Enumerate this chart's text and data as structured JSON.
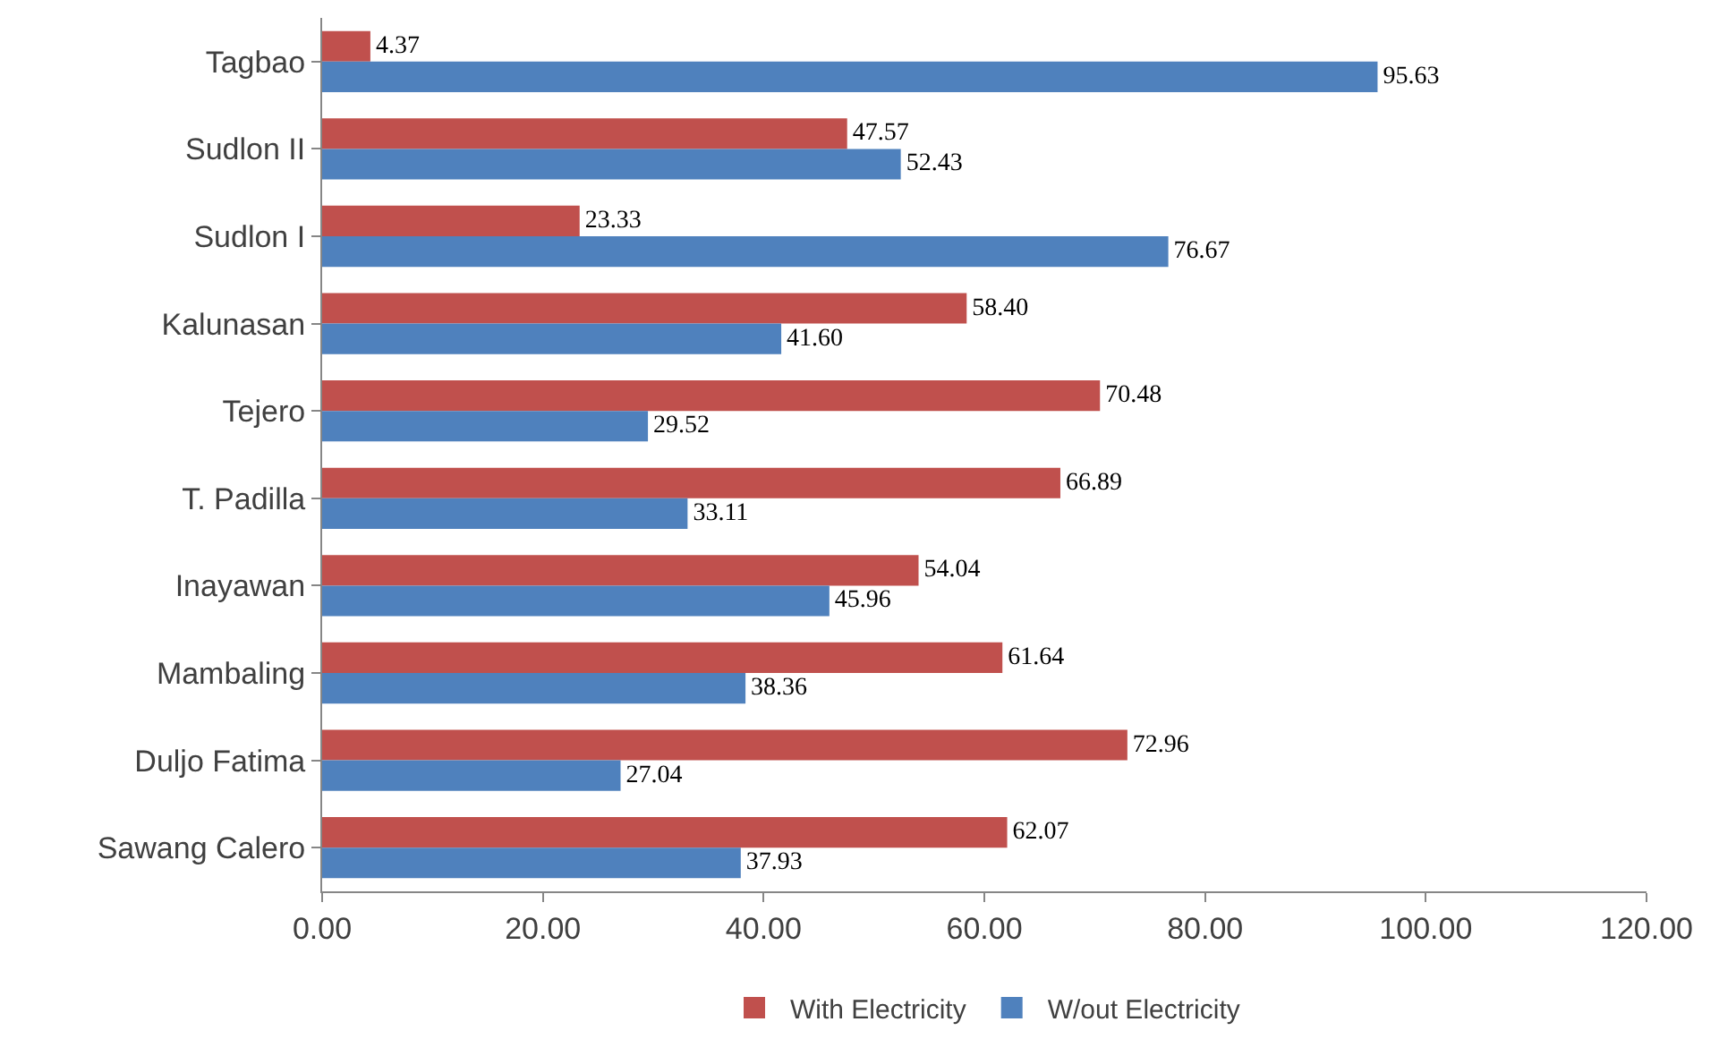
{
  "chart_data": {
    "type": "bar",
    "orientation": "horizontal",
    "categories": [
      "Tagbao",
      "Sudlon II",
      "Sudlon I",
      "Kalunasan",
      "Tejero",
      "T. Padilla",
      "Inayawan",
      "Mambaling",
      "Duljo Fatima",
      "Sawang Calero"
    ],
    "series": [
      {
        "name": "With Electricity",
        "color": "#c0504d",
        "values": [
          4.37,
          47.57,
          23.33,
          58.4,
          70.48,
          66.89,
          54.04,
          61.64,
          72.96,
          62.07
        ],
        "value_labels": [
          "4.37",
          "47.57",
          "23.33",
          "58.40",
          "70.48",
          "66.89",
          "54.04",
          "61.64",
          "72.96",
          "62.07"
        ]
      },
      {
        "name": "W/out Electricity",
        "color": "#4f81bd",
        "values": [
          95.63,
          52.43,
          76.67,
          41.6,
          29.52,
          33.11,
          45.96,
          38.36,
          27.04,
          37.93
        ],
        "value_labels": [
          "95.63",
          "52.43",
          "76.67",
          "41.60",
          "29.52",
          "33.11",
          "45.96",
          "38.36",
          "27.04",
          "37.93"
        ]
      }
    ],
    "xlim": [
      0,
      120
    ],
    "xticks": [
      {
        "value": 0,
        "label": "0.00"
      },
      {
        "value": 20,
        "label": "20.00"
      },
      {
        "value": 40,
        "label": "40.00"
      },
      {
        "value": 60,
        "label": "60.00"
      },
      {
        "value": 80,
        "label": "80.00"
      },
      {
        "value": 100,
        "label": "100.00"
      },
      {
        "value": 120,
        "label": "120.00"
      }
    ],
    "legend": "bottom"
  }
}
